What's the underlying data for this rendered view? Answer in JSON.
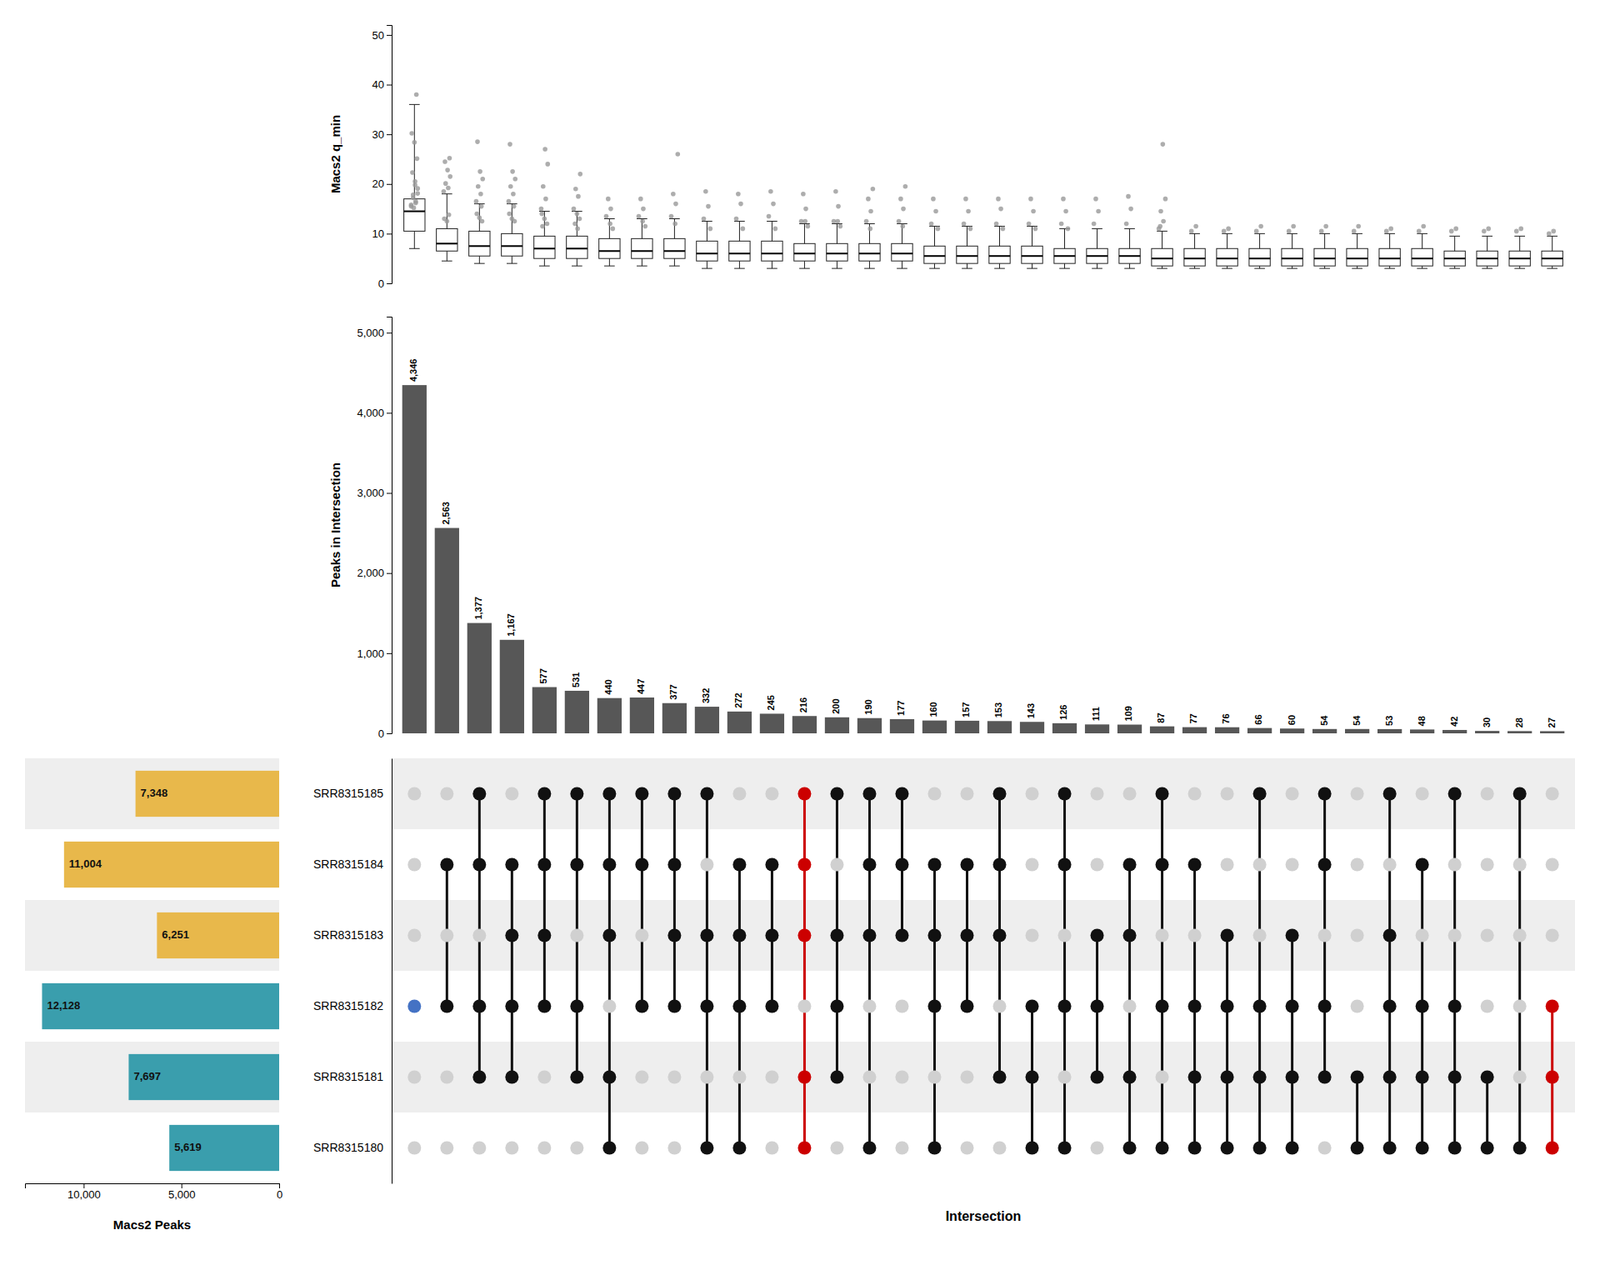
{
  "chart_data": [
    {
      "type": "box",
      "ylabel": "Macs2 q_min",
      "ylim": [
        0,
        52
      ],
      "yticks": [
        0,
        10,
        20,
        30,
        40,
        50
      ],
      "tick_labels": "y",
      "boxes": [
        {
          "med": 14.5,
          "q1": 10.5,
          "q3": 17.0,
          "whislo": 7.0,
          "whishi": 36.0,
          "fliers": [
            15.5,
            16.2,
            17.8,
            19.1,
            20.5,
            22.3,
            25.1,
            28.4,
            30.2,
            38.0,
            15.2,
            15.8,
            16.5,
            17.2,
            18.1,
            19.8
          ]
        },
        {
          "med": 8.0,
          "q1": 6.5,
          "q3": 11.0,
          "whislo": 4.5,
          "whishi": 18.0,
          "fliers": [
            18.5,
            19.2,
            20.1,
            21.5,
            22.8,
            24.5,
            25.2,
            12.5,
            13.0,
            13.8
          ]
        },
        {
          "med": 7.5,
          "q1": 5.5,
          "q3": 10.5,
          "whislo": 4.0,
          "whishi": 16.0,
          "fliers": [
            16.5,
            18.0,
            19.5,
            21.0,
            22.5,
            28.5,
            12.5,
            13.2,
            14.0,
            15.5
          ]
        },
        {
          "med": 7.5,
          "q1": 5.5,
          "q3": 10.0,
          "whislo": 4.0,
          "whishi": 16.0,
          "fliers": [
            16.5,
            18.0,
            19.5,
            21.0,
            22.5,
            28.0,
            12.5,
            13.0,
            14.0,
            15.5
          ]
        },
        {
          "med": 7.0,
          "q1": 5.0,
          "q3": 9.5,
          "whislo": 3.5,
          "whishi": 14.5,
          "fliers": [
            15.0,
            17.0,
            19.5,
            24.0,
            27.0,
            11.5,
            12.0,
            13.0,
            14.0
          ]
        },
        {
          "med": 7.0,
          "q1": 5.0,
          "q3": 9.5,
          "whislo": 3.5,
          "whishi": 14.5,
          "fliers": [
            15.0,
            17.5,
            19.0,
            22.0,
            11.0,
            12.0,
            13.0,
            14.0
          ]
        },
        {
          "med": 6.5,
          "q1": 5.0,
          "q3": 9.0,
          "whislo": 3.5,
          "whishi": 13.0,
          "fliers": [
            13.5,
            15.0,
            17.0,
            11.0,
            12.0
          ]
        },
        {
          "med": 6.5,
          "q1": 5.0,
          "q3": 9.0,
          "whislo": 3.5,
          "whishi": 13.0,
          "fliers": [
            13.5,
            15.0,
            17.0,
            11.5,
            12.5
          ]
        },
        {
          "med": 6.5,
          "q1": 5.0,
          "q3": 9.0,
          "whislo": 3.5,
          "whishi": 13.0,
          "fliers": [
            13.5,
            16.0,
            18.0,
            26.0,
            12.0
          ]
        },
        {
          "med": 6.0,
          "q1": 4.5,
          "q3": 8.5,
          "whislo": 3.0,
          "whishi": 12.5,
          "fliers": [
            13.0,
            15.5,
            18.5,
            11.0
          ]
        },
        {
          "med": 6.0,
          "q1": 4.5,
          "q3": 8.5,
          "whislo": 3.0,
          "whishi": 12.5,
          "fliers": [
            13.0,
            16.0,
            18.0,
            11.0
          ]
        },
        {
          "med": 6.0,
          "q1": 4.5,
          "q3": 8.5,
          "whislo": 3.0,
          "whishi": 12.5,
          "fliers": [
            13.5,
            16.0,
            18.5,
            11.0
          ]
        },
        {
          "med": 6.0,
          "q1": 4.5,
          "q3": 8.0,
          "whislo": 3.0,
          "whishi": 12.0,
          "fliers": [
            12.5,
            15.0,
            18.0,
            11.5,
            12.5
          ]
        },
        {
          "med": 6.0,
          "q1": 4.5,
          "q3": 8.0,
          "whislo": 3.0,
          "whishi": 12.0,
          "fliers": [
            12.5,
            15.5,
            18.5,
            11.5,
            12.5
          ]
        },
        {
          "med": 6.0,
          "q1": 4.5,
          "q3": 8.0,
          "whislo": 3.0,
          "whishi": 12.0,
          "fliers": [
            12.5,
            14.5,
            17.0,
            19.0,
            11.0
          ]
        },
        {
          "med": 6.0,
          "q1": 4.5,
          "q3": 8.0,
          "whislo": 3.0,
          "whishi": 12.0,
          "fliers": [
            12.5,
            15.0,
            17.0,
            19.5,
            11.5
          ]
        },
        {
          "med": 5.5,
          "q1": 4.0,
          "q3": 7.5,
          "whislo": 3.0,
          "whishi": 11.5,
          "fliers": [
            12.0,
            14.5,
            17.0,
            11.0
          ]
        },
        {
          "med": 5.5,
          "q1": 4.0,
          "q3": 7.5,
          "whislo": 3.0,
          "whishi": 11.5,
          "fliers": [
            12.0,
            14.5,
            17.0,
            11.0
          ]
        },
        {
          "med": 5.5,
          "q1": 4.0,
          "q3": 7.5,
          "whislo": 3.0,
          "whishi": 11.5,
          "fliers": [
            12.0,
            15.0,
            17.0,
            11.0
          ]
        },
        {
          "med": 5.5,
          "q1": 4.0,
          "q3": 7.5,
          "whislo": 3.0,
          "whishi": 11.5,
          "fliers": [
            12.0,
            14.5,
            17.0,
            11.0
          ]
        },
        {
          "med": 5.5,
          "q1": 4.0,
          "q3": 7.0,
          "whislo": 3.0,
          "whishi": 11.0,
          "fliers": [
            12.0,
            14.5,
            17.0,
            11.0
          ]
        },
        {
          "med": 5.5,
          "q1": 4.0,
          "q3": 7.0,
          "whislo": 3.0,
          "whishi": 11.0,
          "fliers": [
            12.0,
            14.5,
            17.0
          ]
        },
        {
          "med": 5.5,
          "q1": 4.0,
          "q3": 7.0,
          "whislo": 3.0,
          "whishi": 11.0,
          "fliers": [
            12.0,
            15.0,
            17.5
          ]
        },
        {
          "med": 5.0,
          "q1": 3.5,
          "q3": 7.0,
          "whislo": 3.0,
          "whishi": 10.5,
          "fliers": [
            11.0,
            12.5,
            14.5,
            17.0,
            28.0,
            11.5
          ]
        },
        {
          "med": 5.0,
          "q1": 3.5,
          "q3": 7.0,
          "whislo": 3.0,
          "whishi": 10.0,
          "fliers": [
            10.5,
            11.5
          ]
        },
        {
          "med": 5.0,
          "q1": 3.5,
          "q3": 7.0,
          "whislo": 3.0,
          "whishi": 10.0,
          "fliers": [
            10.5,
            11.0
          ]
        },
        {
          "med": 5.0,
          "q1": 3.5,
          "q3": 7.0,
          "whislo": 3.0,
          "whishi": 10.0,
          "fliers": [
            10.5,
            11.5
          ]
        },
        {
          "med": 5.0,
          "q1": 3.5,
          "q3": 7.0,
          "whislo": 3.0,
          "whishi": 10.0,
          "fliers": [
            10.5,
            11.5
          ]
        },
        {
          "med": 5.0,
          "q1": 3.5,
          "q3": 7.0,
          "whislo": 3.0,
          "whishi": 10.0,
          "fliers": [
            10.5,
            11.5
          ]
        },
        {
          "med": 5.0,
          "q1": 3.5,
          "q3": 7.0,
          "whislo": 3.0,
          "whishi": 10.0,
          "fliers": [
            10.5,
            11.5
          ]
        },
        {
          "med": 5.0,
          "q1": 3.5,
          "q3": 7.0,
          "whislo": 3.0,
          "whishi": 10.0,
          "fliers": [
            10.5,
            11.0
          ]
        },
        {
          "med": 5.0,
          "q1": 3.5,
          "q3": 7.0,
          "whislo": 3.0,
          "whishi": 10.0,
          "fliers": [
            10.5,
            11.5
          ]
        },
        {
          "med": 5.0,
          "q1": 3.5,
          "q3": 6.5,
          "whislo": 3.0,
          "whishi": 9.5,
          "fliers": [
            10.5,
            11.0
          ]
        },
        {
          "med": 5.0,
          "q1": 3.5,
          "q3": 6.5,
          "whislo": 3.0,
          "whishi": 9.5,
          "fliers": [
            10.5,
            11.0
          ]
        },
        {
          "med": 5.0,
          "q1": 3.5,
          "q3": 6.5,
          "whislo": 3.0,
          "whishi": 9.5,
          "fliers": [
            10.5,
            11.0
          ]
        },
        {
          "med": 5.0,
          "q1": 3.5,
          "q3": 6.5,
          "whislo": 3.0,
          "whishi": 9.5,
          "fliers": [
            10.0,
            10.5
          ]
        }
      ]
    },
    {
      "type": "bar",
      "ylabel": "Peaks in Intersection",
      "color": "#575757",
      "values": [
        4346,
        2563,
        1377,
        1167,
        577,
        531,
        440,
        447,
        377,
        332,
        272,
        245,
        216,
        200,
        190,
        177,
        160,
        157,
        153,
        143,
        126,
        111,
        109,
        87,
        77,
        76,
        66,
        60,
        54,
        54,
        53,
        48,
        42,
        30,
        28,
        27
      ],
      "value_labels": [
        "4,346",
        "2,563",
        "1,377",
        "1,167",
        "577",
        "531",
        "440",
        "447",
        "377",
        "332",
        "272",
        "245",
        "216",
        "200",
        "190",
        "177",
        "160",
        "157",
        "153",
        "143",
        "126",
        "111",
        "109",
        "87",
        "77",
        "76",
        "66",
        "60",
        "54",
        "54",
        "53",
        "48",
        "42",
        "30",
        "28",
        "27"
      ],
      "data_labels": true,
      "ylim": [
        0,
        5200
      ],
      "yticks": [
        0,
        {
          "value": 1000,
          "label": "1,000"
        },
        {
          "value": 2000,
          "label": "2,000"
        },
        {
          "value": 3000,
          "label": "3,000"
        },
        {
          "value": 4000,
          "label": "4,000"
        },
        {
          "value": 5000,
          "label": "5,000"
        }
      ],
      "tick_labels": "y"
    },
    {
      "type": "matrix",
      "xlabel": "Intersection",
      "categories": [
        "SRR8315185",
        "SRR8315184",
        "SRR8315183",
        "SRR8315182",
        "SRR8315181",
        "SRR8315180"
      ],
      "colors": [
        "#4472C4",
        "#111111",
        "#111111",
        "#111111",
        "#111111",
        "#111111",
        "#111111",
        "#111111",
        "#111111",
        "#111111",
        "#111111",
        "#111111",
        "#CC0000",
        "#111111",
        "#111111",
        "#111111",
        "#111111",
        "#111111",
        "#111111",
        "#111111",
        "#111111",
        "#111111",
        "#111111",
        "#111111",
        "#111111",
        "#111111",
        "#111111",
        "#111111",
        "#111111",
        "#111111",
        "#111111",
        "#111111",
        "#111111",
        "#111111",
        "#111111",
        "#CC0000"
      ],
      "cells": [
        [
          0,
          0,
          1,
          0,
          1,
          1,
          1,
          1,
          1,
          1,
          0,
          0,
          1,
          1,
          1,
          1,
          0,
          0,
          1,
          0,
          1,
          0,
          0,
          1,
          0,
          0,
          1,
          0,
          1,
          0,
          1,
          0,
          1,
          0,
          1,
          0
        ],
        [
          0,
          1,
          1,
          1,
          1,
          1,
          1,
          1,
          1,
          0,
          1,
          1,
          1,
          0,
          1,
          1,
          1,
          1,
          1,
          0,
          1,
          0,
          1,
          1,
          1,
          0,
          0,
          0,
          1,
          0,
          0,
          1,
          0,
          0,
          0,
          0
        ],
        [
          0,
          0,
          0,
          1,
          1,
          0,
          1,
          0,
          1,
          1,
          1,
          1,
          1,
          1,
          1,
          1,
          1,
          1,
          1,
          0,
          0,
          1,
          1,
          0,
          0,
          1,
          0,
          1,
          0,
          0,
          1,
          0,
          0,
          0,
          0,
          0
        ],
        [
          1,
          1,
          1,
          1,
          1,
          1,
          0,
          1,
          1,
          1,
          1,
          1,
          0,
          1,
          0,
          0,
          1,
          1,
          0,
          1,
          1,
          1,
          0,
          1,
          1,
          1,
          1,
          1,
          1,
          0,
          1,
          1,
          1,
          0,
          0,
          1
        ],
        [
          0,
          0,
          1,
          1,
          0,
          1,
          1,
          0,
          0,
          0,
          0,
          0,
          1,
          1,
          0,
          0,
          0,
          0,
          1,
          1,
          0,
          1,
          1,
          0,
          1,
          1,
          1,
          1,
          1,
          1,
          1,
          1,
          1,
          1,
          0,
          1
        ],
        [
          0,
          0,
          0,
          0,
          0,
          0,
          1,
          0,
          0,
          1,
          1,
          0,
          1,
          0,
          1,
          0,
          1,
          0,
          0,
          1,
          1,
          0,
          1,
          1,
          1,
          1,
          1,
          1,
          0,
          1,
          1,
          1,
          1,
          1,
          1,
          1
        ]
      ]
    },
    {
      "type": "bar",
      "orientation": "horizontal",
      "xlabel": "Macs2 Peaks",
      "values": [
        7348,
        11004,
        6251,
        12128,
        7697,
        5619
      ],
      "value_labels": [
        "7,348",
        "11,004",
        "6,251",
        "12,128",
        "7,697",
        "5,619"
      ],
      "data_labels": true,
      "colors": [
        "#E8B84B",
        "#E8B84B",
        "#E8B84B",
        "#3A9EAD",
        "#3A9EAD",
        "#3A9EAD"
      ],
      "xlim": [
        13000,
        0
      ],
      "xticks": [
        {
          "value": 10000,
          "label": "10,000"
        },
        {
          "value": 5000,
          "label": "5,000"
        },
        0
      ],
      "tick_labels": "x"
    }
  ]
}
